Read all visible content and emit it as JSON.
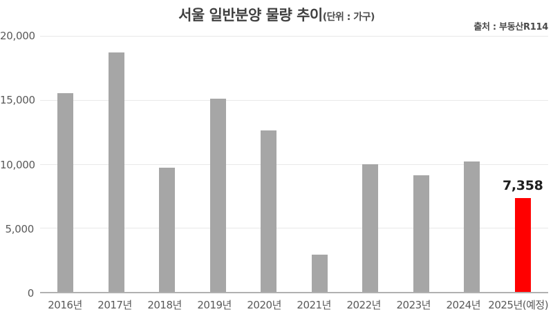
{
  "header": {
    "title": "서울 일반분양 물량 추이",
    "unit_note": "(단위 : 가구)",
    "source": "출처 : 부동산R114"
  },
  "chart_data": {
    "type": "bar",
    "title": "서울 일반분양 물량 추이",
    "unit_note": "(단위 : 가구)",
    "source": "출처 : 부동산R114",
    "categories": [
      "2016년",
      "2017년",
      "2018년",
      "2019년",
      "2020년",
      "2021년",
      "2022년",
      "2023년",
      "2024년",
      "2025년(예정)"
    ],
    "values": [
      15500,
      18700,
      9700,
      15100,
      12600,
      2900,
      10000,
      9100,
      10200,
      7358
    ],
    "data_labels": [
      null,
      null,
      null,
      null,
      null,
      null,
      null,
      null,
      null,
      "7,358"
    ],
    "highlight_index": 9,
    "ylim": [
      0,
      20000
    ],
    "ytick_values": [
      20000,
      15000,
      10000,
      5000,
      0
    ],
    "ytick_labels": [
      "20,000",
      "15,000",
      "10,000",
      "5,000",
      "0"
    ],
    "grid": true,
    "legend": false,
    "colors": {
      "bar": "#a6a6a6",
      "highlight": "#ff0000",
      "gridline": "#e8e8e8",
      "baseline": "#b0b0b0",
      "title": "#3f3f3f",
      "tick_text": "#595959",
      "value_label": "#1f1f1f"
    }
  }
}
